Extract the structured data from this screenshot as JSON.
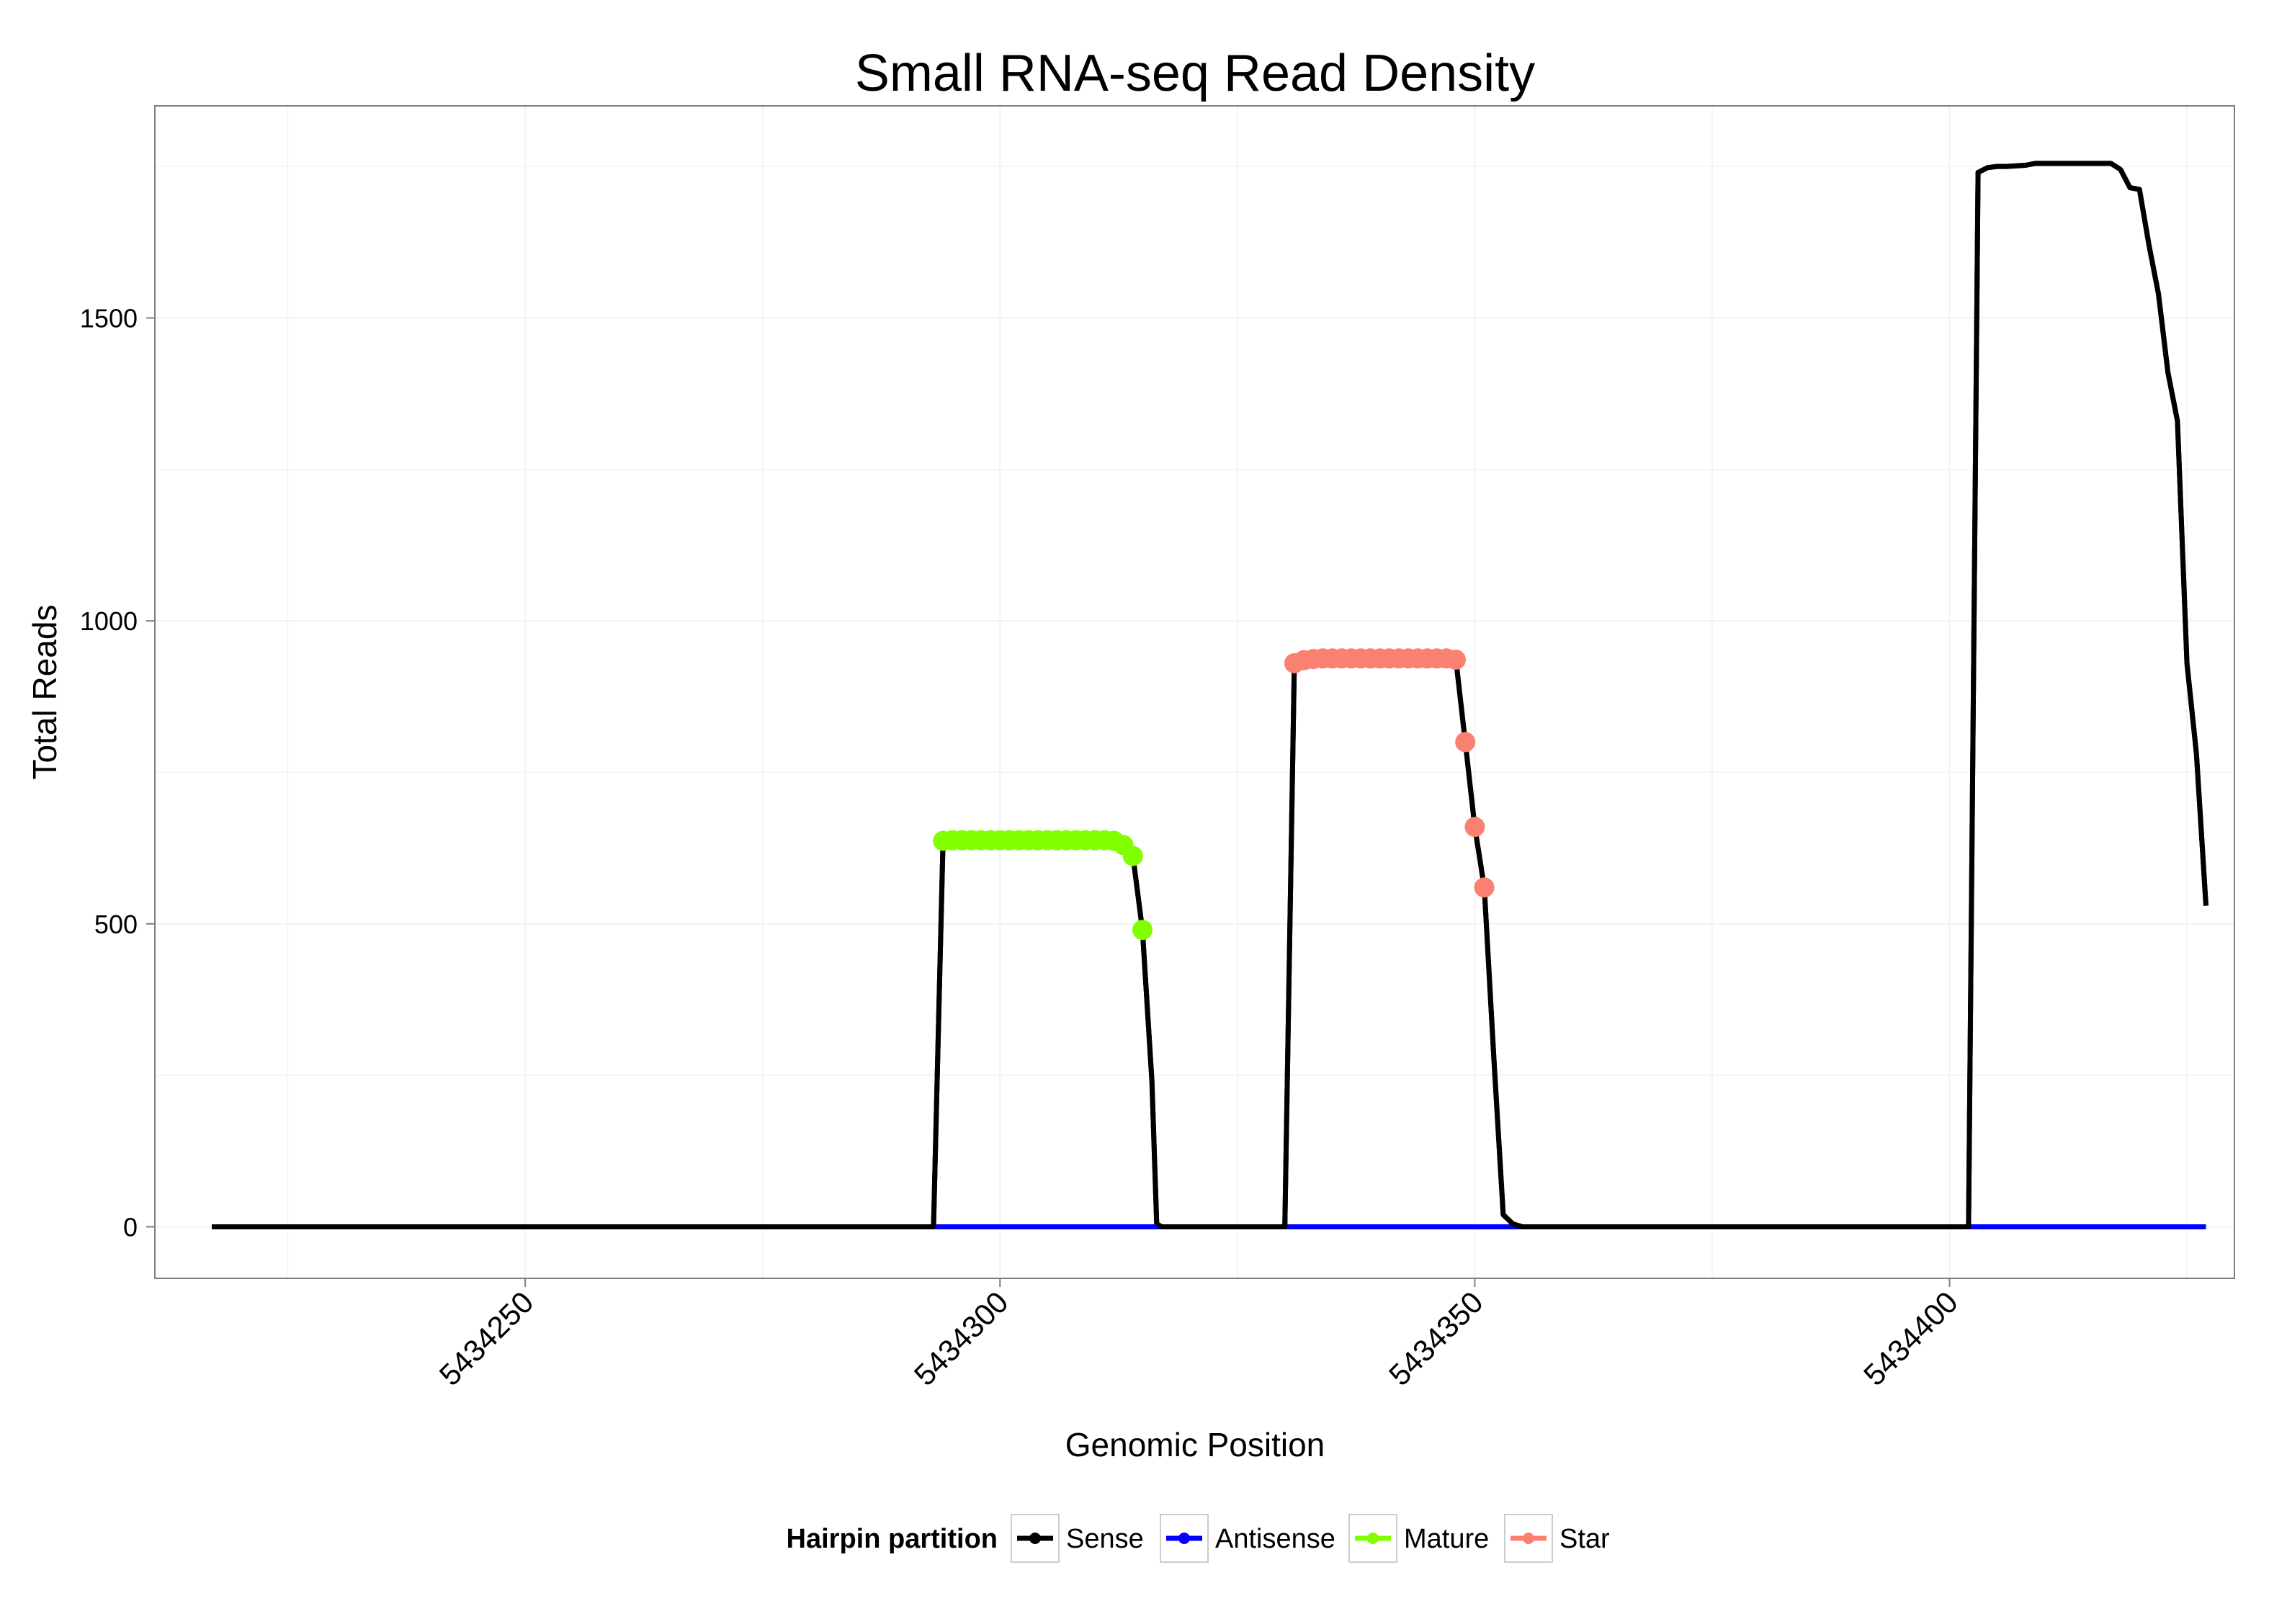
{
  "chart_data": {
    "type": "line",
    "title": "Small RNA-seq Read Density",
    "xlabel": "Genomic Position",
    "ylabel": "Total Reads",
    "xlim": [
      5434211,
      5434430
    ],
    "ylim": [
      -85,
      1850
    ],
    "x_ticks": [
      5434250,
      5434300,
      5434350,
      5434400
    ],
    "x_tick_labels": [
      "5434250",
      "5434300",
      "5434350",
      "5434400"
    ],
    "y_ticks": [
      0,
      500,
      1000,
      1500
    ],
    "y_tick_labels": [
      "0",
      "500",
      "1000",
      "1500"
    ],
    "grid": true,
    "legend": {
      "title": "Hairpin partition",
      "position": "bottom",
      "entries": [
        "Sense",
        "Antisense",
        "Mature",
        "Star"
      ]
    },
    "series": [
      {
        "name": "Sense",
        "color": "#000000",
        "style": "line",
        "points": [
          [
            5434217,
            0
          ],
          [
            5434293,
            0
          ],
          [
            5434294,
            637
          ],
          [
            5434312,
            637
          ],
          [
            5434313,
            630
          ],
          [
            5434314,
            612
          ],
          [
            5434315,
            490
          ],
          [
            5434316,
            240
          ],
          [
            5434316.5,
            5
          ],
          [
            5434317,
            0
          ],
          [
            5434330,
            0
          ],
          [
            5434331,
            930
          ],
          [
            5434332,
            935
          ],
          [
            5434334,
            938
          ],
          [
            5434348,
            938
          ],
          [
            5434349,
            800
          ],
          [
            5434350,
            660
          ],
          [
            5434351,
            560
          ],
          [
            5434352,
            280
          ],
          [
            5434353,
            20
          ],
          [
            5434354,
            5
          ],
          [
            5434355,
            0
          ],
          [
            5434402,
            0
          ],
          [
            5434403,
            1740
          ],
          [
            5434404,
            1748
          ],
          [
            5434405,
            1750
          ],
          [
            5434406,
            1750
          ],
          [
            5434408,
            1752
          ],
          [
            5434409,
            1755
          ],
          [
            5434417,
            1755
          ],
          [
            5434418,
            1745
          ],
          [
            5434419,
            1715
          ],
          [
            5434420,
            1712
          ],
          [
            5434421,
            1620
          ],
          [
            5434422,
            1540
          ],
          [
            5434423,
            1410
          ],
          [
            5434424,
            1330
          ],
          [
            5434425,
            930
          ],
          [
            5434426,
            780
          ],
          [
            5434427,
            530
          ]
        ]
      },
      {
        "name": "Antisense",
        "color": "#0000ff",
        "style": "line",
        "points": [
          [
            5434217,
            0
          ],
          [
            5434427,
            0
          ]
        ]
      },
      {
        "name": "Mature",
        "color": "#7fff00",
        "style": "points",
        "points": [
          [
            5434294,
            637
          ],
          [
            5434295,
            638
          ],
          [
            5434296,
            638
          ],
          [
            5434297,
            638
          ],
          [
            5434298,
            638
          ],
          [
            5434299,
            638
          ],
          [
            5434300,
            638
          ],
          [
            5434301,
            638
          ],
          [
            5434302,
            638
          ],
          [
            5434303,
            638
          ],
          [
            5434304,
            638
          ],
          [
            5434305,
            638
          ],
          [
            5434306,
            638
          ],
          [
            5434307,
            638
          ],
          [
            5434308,
            638
          ],
          [
            5434309,
            638
          ],
          [
            5434310,
            638
          ],
          [
            5434311,
            638
          ],
          [
            5434312,
            637
          ],
          [
            5434313,
            630
          ],
          [
            5434314,
            612
          ],
          [
            5434315,
            490
          ]
        ]
      },
      {
        "name": "Star",
        "color": "#fa8072",
        "style": "points",
        "points": [
          [
            5434331,
            930
          ],
          [
            5434332,
            935
          ],
          [
            5434333,
            937
          ],
          [
            5434334,
            938
          ],
          [
            5434335,
            938
          ],
          [
            5434336,
            938
          ],
          [
            5434337,
            938
          ],
          [
            5434338,
            938
          ],
          [
            5434339,
            938
          ],
          [
            5434340,
            938
          ],
          [
            5434341,
            938
          ],
          [
            5434342,
            938
          ],
          [
            5434343,
            938
          ],
          [
            5434344,
            938
          ],
          [
            5434345,
            938
          ],
          [
            5434346,
            938
          ],
          [
            5434347,
            938
          ],
          [
            5434348,
            936
          ],
          [
            5434349,
            800
          ],
          [
            5434350,
            660
          ],
          [
            5434351,
            560
          ]
        ]
      }
    ]
  }
}
